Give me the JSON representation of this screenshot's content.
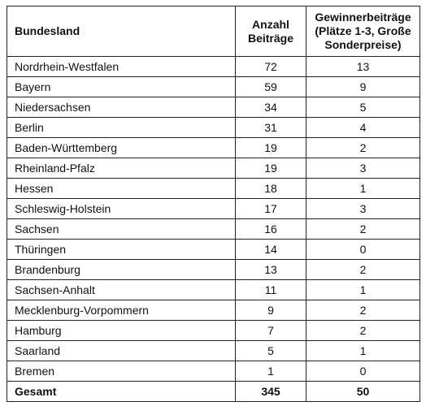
{
  "table": {
    "headers": {
      "state": "Bundesland",
      "entries_line1": "Anzahl",
      "entries_line2": "Beiträge",
      "winners_line1": "Gewinnerbeiträge",
      "winners_line2": "(Plätze 1-3, Große",
      "winners_line3": "Sonderpreise)"
    },
    "rows": [
      {
        "state": "Nordrhein-Westfalen",
        "entries": "72",
        "winners": "13"
      },
      {
        "state": "Bayern",
        "entries": "59",
        "winners": "9"
      },
      {
        "state": "Niedersachsen",
        "entries": "34",
        "winners": "5"
      },
      {
        "state": "Berlin",
        "entries": "31",
        "winners": "4"
      },
      {
        "state": "Baden-Württemberg",
        "entries": "19",
        "winners": "2"
      },
      {
        "state": "Rheinland-Pfalz",
        "entries": "19",
        "winners": "3"
      },
      {
        "state": "Hessen",
        "entries": "18",
        "winners": "1"
      },
      {
        "state": "Schleswig-Holstein",
        "entries": "17",
        "winners": "3"
      },
      {
        "state": "Sachsen",
        "entries": "16",
        "winners": "2"
      },
      {
        "state": "Thüringen",
        "entries": "14",
        "winners": "0"
      },
      {
        "state": "Brandenburg",
        "entries": "13",
        "winners": "2"
      },
      {
        "state": "Sachsen-Anhalt",
        "entries": "11",
        "winners": "1"
      },
      {
        "state": "Mecklenburg-Vorpommern",
        "entries": "9",
        "winners": "2"
      },
      {
        "state": "Hamburg",
        "entries": "7",
        "winners": "2"
      },
      {
        "state": "Saarland",
        "entries": "5",
        "winners": "1"
      },
      {
        "state": "Bremen",
        "entries": "1",
        "winners": "0"
      }
    ],
    "total": {
      "state": "Gesamt",
      "entries": "345",
      "winners": "50"
    }
  }
}
